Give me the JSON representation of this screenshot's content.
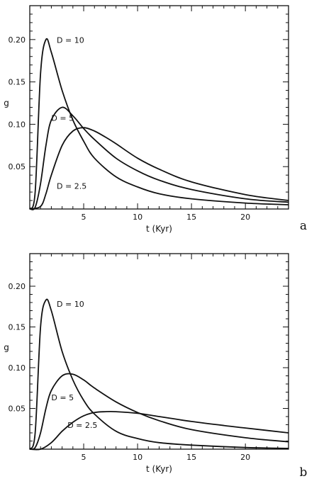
{
  "chart_data": [
    {
      "type": "line",
      "panel_letter": "a",
      "xlabel": "t (Kyr)",
      "ylabel": "g",
      "xlim": [
        0,
        24
      ],
      "ylim": [
        0,
        0.24
      ],
      "xticks": [
        5,
        10,
        15,
        20
      ],
      "yticks": [
        0.05,
        0.1,
        0.15,
        0.2
      ],
      "xtick_labels": [
        "5",
        "10",
        "15",
        "20"
      ],
      "ytick_labels": [
        "0.05",
        "0.10",
        "0.15",
        "0.20"
      ],
      "series": [
        {
          "name": "D = 10",
          "x": [
            0,
            0.5,
            1.0,
            1.5,
            2.0,
            3.0,
            4.0,
            5.0,
            6.0,
            8.0,
            10.0,
            12.0,
            15.0,
            20.0,
            24.0
          ],
          "values": [
            0,
            0.02,
            0.16,
            0.2,
            0.185,
            0.14,
            0.105,
            0.08,
            0.06,
            0.038,
            0.026,
            0.018,
            0.012,
            0.007,
            0.005
          ]
        },
        {
          "name": "D = 5",
          "x": [
            0,
            0.5,
            1.0,
            1.5,
            2.0,
            3.0,
            4.0,
            5.0,
            6.0,
            8.0,
            10.0,
            12.0,
            15.0,
            20.0,
            24.0
          ],
          "values": [
            0,
            0.002,
            0.03,
            0.075,
            0.105,
            0.12,
            0.11,
            0.095,
            0.082,
            0.06,
            0.045,
            0.034,
            0.023,
            0.012,
            0.008
          ]
        },
        {
          "name": "D = 2.5",
          "x": [
            0,
            1.0,
            1.5,
            2.0,
            3.0,
            4.0,
            5.0,
            6.0,
            7.0,
            8.0,
            10.0,
            12.0,
            15.0,
            20.0,
            24.0
          ],
          "values": [
            0,
            0.003,
            0.018,
            0.04,
            0.075,
            0.092,
            0.096,
            0.092,
            0.085,
            0.077,
            0.06,
            0.047,
            0.032,
            0.017,
            0.01
          ]
        }
      ],
      "labels": [
        {
          "text": "D = 10",
          "series": "D = 10",
          "x": 2.5,
          "y": 0.196
        },
        {
          "text": "D = 5",
          "series": "D = 5",
          "x": 2.0,
          "y": 0.104
        },
        {
          "text": "D = 2.5",
          "series": "D = 2.5",
          "x": 2.5,
          "y": 0.024
        }
      ]
    },
    {
      "type": "line",
      "panel_letter": "b",
      "xlabel": "t (Kyr)",
      "ylabel": "g",
      "xlim": [
        0,
        24
      ],
      "ylim": [
        0,
        0.24
      ],
      "xticks": [
        5,
        10,
        15,
        20
      ],
      "yticks": [
        0.05,
        0.1,
        0.15,
        0.2
      ],
      "xtick_labels": [
        "5",
        "10",
        "15",
        "20"
      ],
      "ytick_labels": [
        "0.05",
        "0.10",
        "0.15",
        "0.20"
      ],
      "series": [
        {
          "name": "D = 10",
          "x": [
            0,
            0.5,
            1.0,
            1.5,
            2.0,
            3.0,
            4.0,
            5.0,
            6.0,
            8.0,
            10.0,
            12.0,
            15.0,
            20.0,
            24.0
          ],
          "values": [
            0,
            0.02,
            0.15,
            0.183,
            0.17,
            0.12,
            0.085,
            0.06,
            0.043,
            0.022,
            0.013,
            0.008,
            0.005,
            0.002,
            0.001
          ]
        },
        {
          "name": "D = 5",
          "x": [
            0,
            0.5,
            1.0,
            1.5,
            2.0,
            3.0,
            4.0,
            5.0,
            6.0,
            8.0,
            10.0,
            12.0,
            15.0,
            20.0,
            24.0
          ],
          "values": [
            0,
            0.002,
            0.02,
            0.05,
            0.072,
            0.09,
            0.092,
            0.085,
            0.075,
            0.058,
            0.045,
            0.035,
            0.024,
            0.014,
            0.009
          ]
        },
        {
          "name": "D = 2.5",
          "x": [
            0,
            1.0,
            2.0,
            3.0,
            4.0,
            5.0,
            6.0,
            7.0,
            8.0,
            10.0,
            12.0,
            15.0,
            18.0,
            20.0,
            24.0
          ],
          "values": [
            0,
            0.0,
            0.008,
            0.022,
            0.033,
            0.041,
            0.045,
            0.046,
            0.046,
            0.044,
            0.04,
            0.034,
            0.029,
            0.026,
            0.02
          ]
        }
      ],
      "labels": [
        {
          "text": "D = 10",
          "series": "D = 10",
          "x": 2.5,
          "y": 0.175
        },
        {
          "text": "D = 5",
          "series": "D = 5",
          "x": 2.0,
          "y": 0.06
        },
        {
          "text": "D = 2.5",
          "series": "D = 2.5",
          "x": 3.5,
          "y": 0.026
        }
      ]
    }
  ]
}
